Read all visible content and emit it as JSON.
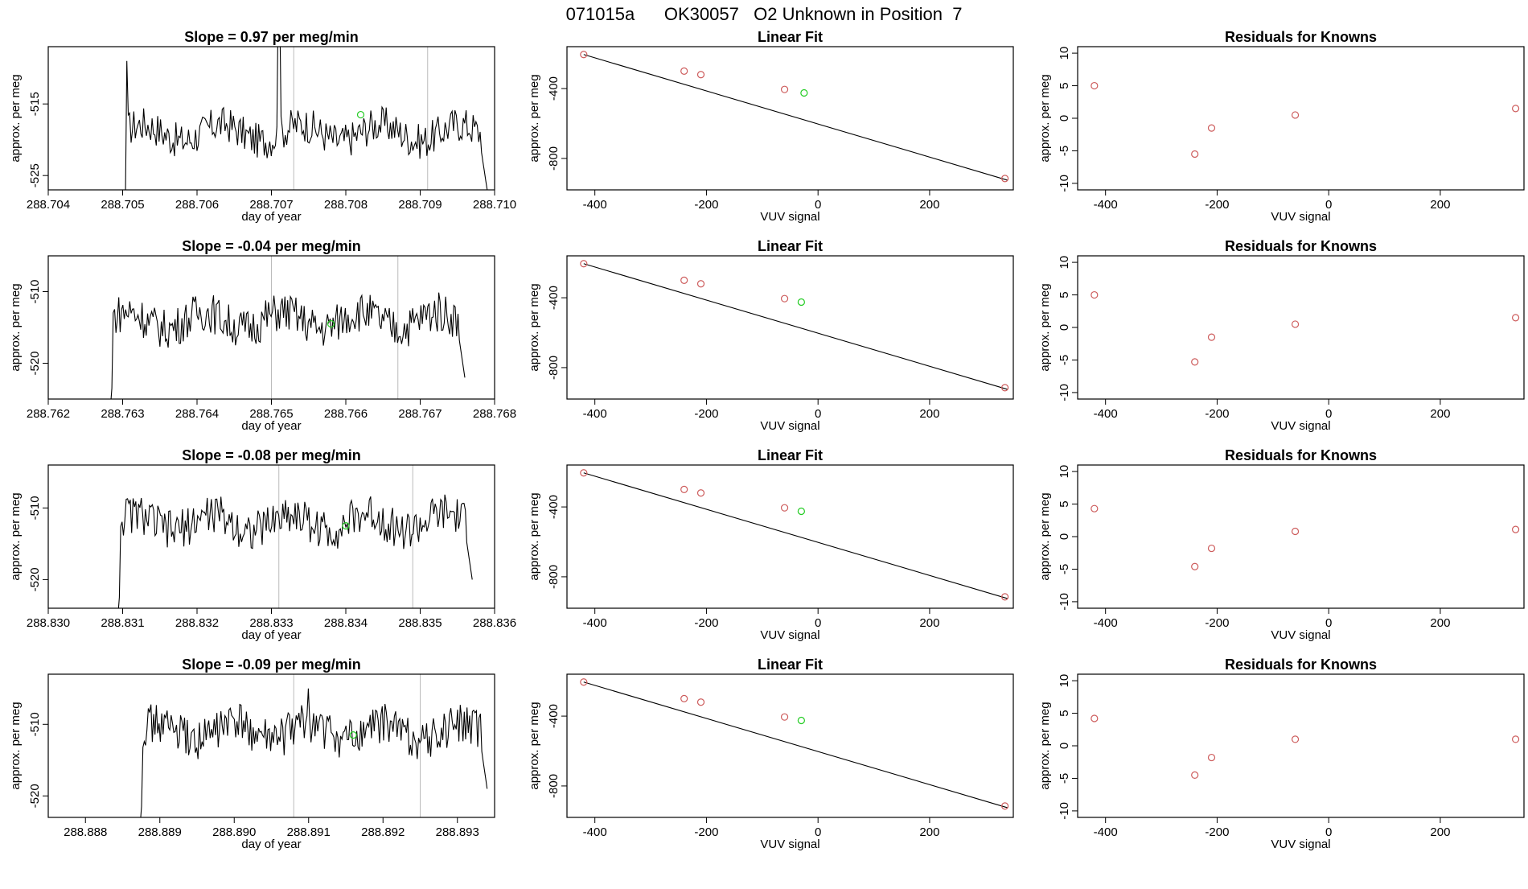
{
  "page_title": "071015a      OK30057   O2 Unknown in Position  7",
  "colors": {
    "trace": "#000000",
    "known": "#cd5c5c",
    "unknown": "#22cc22",
    "frame": "#000000",
    "vline": "#bbbbbb"
  },
  "chart_data": [
    {
      "type": "line",
      "row": 0,
      "title": "Slope =  0.97  per meg/min",
      "xlabel": "day of year",
      "ylabel": "approx. per meg",
      "xlim": [
        288.704,
        288.71
      ],
      "ylim": [
        -527,
        -507
      ],
      "x_ticks": [
        "288.704",
        "288.705",
        "288.706",
        "288.707",
        "288.708",
        "288.709",
        "288.710"
      ],
      "y_ticks": [
        "-515",
        "-525"
      ],
      "trace_start": 288.705,
      "trace_end": 288.7099,
      "trace_base": -519,
      "trace_amp": 2.5,
      "spikes": [
        {
          "x": 288.70505,
          "y": -509
        },
        {
          "x": 288.7071,
          "y": -500
        }
      ],
      "vlines": [
        288.7073,
        288.7091
      ],
      "unknown_point": {
        "x": 288.7082,
        "y": -516.5
      }
    },
    {
      "type": "scatter",
      "row": 0,
      "title": "Linear Fit",
      "xlabel": "VUV signal",
      "ylabel": "approx. per meg",
      "xlim": [
        -450,
        350
      ],
      "ylim": [
        -980,
        -160
      ],
      "x_ticks": [
        "-400",
        "-200",
        "0",
        "200"
      ],
      "y_ticks": [
        "-400",
        "-800"
      ],
      "knowns": [
        {
          "x": -420,
          "y": -205
        },
        {
          "x": -240,
          "y": -300
        },
        {
          "x": -210,
          "y": -320
        },
        {
          "x": -60,
          "y": -405
        },
        {
          "x": 335,
          "y": -915
        }
      ],
      "unknown_point": {
        "x": -25,
        "y": -425
      },
      "fit_line": [
        {
          "x": -420,
          "y": -205
        },
        {
          "x": 340,
          "y": -925
        }
      ]
    },
    {
      "type": "scatter",
      "row": 0,
      "title": "Residuals for Knowns",
      "xlabel": "VUV signal",
      "ylabel": "approx. per meg",
      "xlim": [
        -450,
        350
      ],
      "ylim": [
        -11,
        11
      ],
      "x_ticks": [
        "-400",
        "-200",
        "0",
        "200"
      ],
      "y_ticks": [
        "10",
        "5",
        "0",
        "-5",
        "-10"
      ],
      "knowns": [
        {
          "x": -420,
          "y": 5.0
        },
        {
          "x": -240,
          "y": -5.5
        },
        {
          "x": -210,
          "y": -1.5
        },
        {
          "x": -60,
          "y": 0.5
        },
        {
          "x": 335,
          "y": 1.5
        }
      ]
    },
    {
      "type": "line",
      "row": 1,
      "title": "Slope =  -0.04  per meg/min",
      "xlabel": "day of year",
      "ylabel": "approx. per meg",
      "xlim": [
        288.762,
        288.768
      ],
      "ylim": [
        -525,
        -505
      ],
      "x_ticks": [
        "288.762",
        "288.763",
        "288.764",
        "288.765",
        "288.766",
        "288.767",
        "288.768"
      ],
      "y_ticks": [
        "-510",
        "-520"
      ],
      "trace_start": 288.7628,
      "trace_end": 288.7676,
      "trace_base": -514,
      "trace_amp": 2.8,
      "spikes": [],
      "vlines": [
        288.765,
        288.7667
      ],
      "unknown_point": {
        "x": 288.7658,
        "y": -514.5
      }
    },
    {
      "type": "scatter",
      "row": 1,
      "title": "Linear Fit",
      "xlabel": "VUV signal",
      "ylabel": "approx. per meg",
      "xlim": [
        -450,
        350
      ],
      "ylim": [
        -980,
        -160
      ],
      "x_ticks": [
        "-400",
        "-200",
        "0",
        "200"
      ],
      "y_ticks": [
        "-400",
        "-800"
      ],
      "knowns": [
        {
          "x": -420,
          "y": -205
        },
        {
          "x": -240,
          "y": -300
        },
        {
          "x": -210,
          "y": -320
        },
        {
          "x": -60,
          "y": -405
        },
        {
          "x": 335,
          "y": -915
        }
      ],
      "unknown_point": {
        "x": -30,
        "y": -425
      },
      "fit_line": [
        {
          "x": -420,
          "y": -205
        },
        {
          "x": 340,
          "y": -925
        }
      ]
    },
    {
      "type": "scatter",
      "row": 1,
      "title": "Residuals for Knowns",
      "xlabel": "VUV signal",
      "ylabel": "approx. per meg",
      "xlim": [
        -450,
        350
      ],
      "ylim": [
        -11,
        11
      ],
      "x_ticks": [
        "-400",
        "-200",
        "0",
        "200"
      ],
      "y_ticks": [
        "10",
        "5",
        "0",
        "-5",
        "-10"
      ],
      "knowns": [
        {
          "x": -420,
          "y": 5.0
        },
        {
          "x": -240,
          "y": -5.3
        },
        {
          "x": -210,
          "y": -1.5
        },
        {
          "x": -60,
          "y": 0.5
        },
        {
          "x": 335,
          "y": 1.5
        }
      ]
    },
    {
      "type": "line",
      "row": 2,
      "title": "Slope =  -0.08  per meg/min",
      "xlabel": "day of year",
      "ylabel": "approx. per meg",
      "xlim": [
        288.83,
        288.836
      ],
      "ylim": [
        -524,
        -504
      ],
      "x_ticks": [
        "288.830",
        "288.831",
        "288.832",
        "288.833",
        "288.834",
        "288.835",
        "288.836"
      ],
      "y_ticks": [
        "-510",
        "-520"
      ],
      "trace_start": 288.8309,
      "trace_end": 288.8357,
      "trace_base": -512,
      "trace_amp": 2.8,
      "spikes": [],
      "vlines": [
        288.8331,
        288.8349
      ],
      "unknown_point": {
        "x": 288.834,
        "y": -512.5
      }
    },
    {
      "type": "scatter",
      "row": 2,
      "title": "Linear Fit",
      "xlabel": "VUV signal",
      "ylabel": "approx. per meg",
      "xlim": [
        -450,
        350
      ],
      "ylim": [
        -980,
        -160
      ],
      "x_ticks": [
        "-400",
        "-200",
        "0",
        "200"
      ],
      "y_ticks": [
        "-400",
        "-800"
      ],
      "knowns": [
        {
          "x": -420,
          "y": -205
        },
        {
          "x": -240,
          "y": -300
        },
        {
          "x": -210,
          "y": -320
        },
        {
          "x": -60,
          "y": -405
        },
        {
          "x": 335,
          "y": -915
        }
      ],
      "unknown_point": {
        "x": -30,
        "y": -425
      },
      "fit_line": [
        {
          "x": -420,
          "y": -205
        },
        {
          "x": 340,
          "y": -925
        }
      ]
    },
    {
      "type": "scatter",
      "row": 2,
      "title": "Residuals for Knowns",
      "xlabel": "VUV signal",
      "ylabel": "approx. per meg",
      "xlim": [
        -450,
        350
      ],
      "ylim": [
        -11,
        11
      ],
      "x_ticks": [
        "-400",
        "-200",
        "0",
        "200"
      ],
      "y_ticks": [
        "10",
        "5",
        "0",
        "-5",
        "-10"
      ],
      "knowns": [
        {
          "x": -420,
          "y": 4.3
        },
        {
          "x": -240,
          "y": -4.6
        },
        {
          "x": -210,
          "y": -1.8
        },
        {
          "x": -60,
          "y": 0.8
        },
        {
          "x": 335,
          "y": 1.1
        }
      ]
    },
    {
      "type": "line",
      "row": 3,
      "title": "Slope =  -0.09  per meg/min",
      "xlabel": "day of year",
      "ylabel": "approx. per meg",
      "xlim": [
        288.8875,
        288.8935
      ],
      "ylim": [
        -523,
        -503
      ],
      "x_ticks": [
        "288.888",
        "288.889",
        "288.890",
        "288.891",
        "288.892",
        "288.893"
      ],
      "x_tick_values": [
        288.888,
        288.889,
        288.89,
        288.891,
        288.892,
        288.893
      ],
      "y_ticks": [
        "-510",
        "-520"
      ],
      "trace_start": 288.8887,
      "trace_end": 288.8934,
      "trace_base": -511,
      "trace_amp": 2.8,
      "spikes": [
        {
          "x": 288.891,
          "y": -505
        }
      ],
      "vlines": [
        288.8908,
        288.8925
      ],
      "unknown_point": {
        "x": 288.8916,
        "y": -511.5
      }
    },
    {
      "type": "scatter",
      "row": 3,
      "title": "Linear Fit",
      "xlabel": "VUV signal",
      "ylabel": "approx. per meg",
      "xlim": [
        -450,
        350
      ],
      "ylim": [
        -980,
        -160
      ],
      "x_ticks": [
        "-400",
        "-200",
        "0",
        "200"
      ],
      "y_ticks": [
        "-400",
        "-800"
      ],
      "knowns": [
        {
          "x": -420,
          "y": -205
        },
        {
          "x": -240,
          "y": -300
        },
        {
          "x": -210,
          "y": -320
        },
        {
          "x": -60,
          "y": -405
        },
        {
          "x": 335,
          "y": -915
        }
      ],
      "unknown_point": {
        "x": -30,
        "y": -425
      },
      "fit_line": [
        {
          "x": -420,
          "y": -205
        },
        {
          "x": 340,
          "y": -925
        }
      ]
    },
    {
      "type": "scatter",
      "row": 3,
      "title": "Residuals for Knowns",
      "xlabel": "VUV signal",
      "ylabel": "approx. per meg",
      "xlim": [
        -450,
        350
      ],
      "ylim": [
        -11,
        11
      ],
      "x_ticks": [
        "-400",
        "-200",
        "0",
        "200"
      ],
      "y_ticks": [
        "10",
        "5",
        "0",
        "-5",
        "-10"
      ],
      "knowns": [
        {
          "x": -420,
          "y": 4.2
        },
        {
          "x": -240,
          "y": -4.5
        },
        {
          "x": -210,
          "y": -1.8
        },
        {
          "x": -60,
          "y": 1.0
        },
        {
          "x": 335,
          "y": 1.0
        }
      ]
    }
  ]
}
